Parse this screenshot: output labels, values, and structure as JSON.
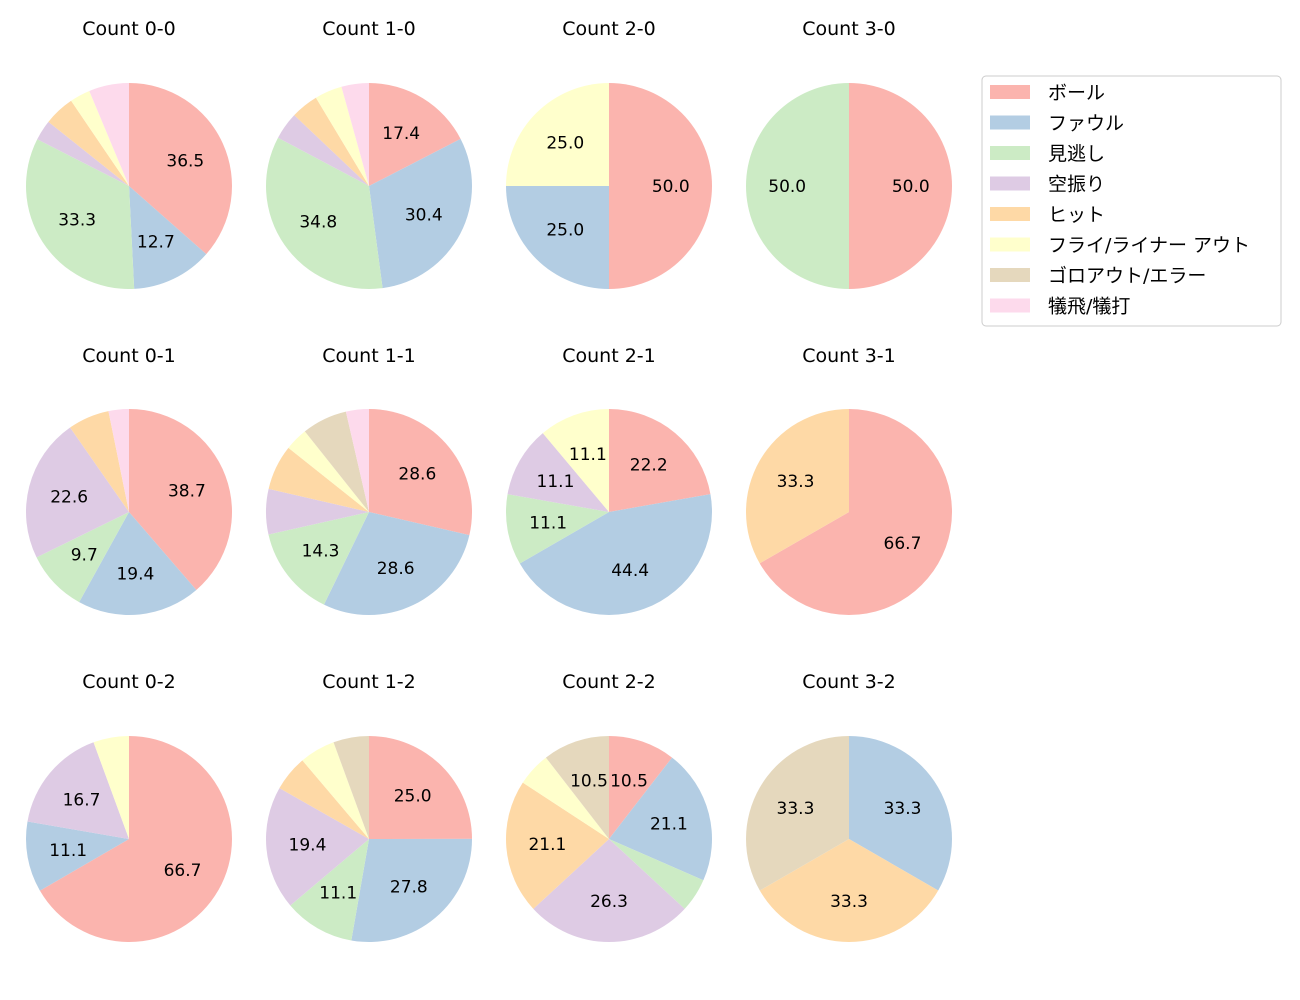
{
  "chart_data": {
    "type": "pie",
    "legend": {
      "placement": "top-right",
      "entries": [
        "ボール",
        "ファウル",
        "見逃し",
        "空振り",
        "ヒット",
        "フライ/ライナー アウト",
        "ゴロアウト/エラー",
        "犠飛/犠打"
      ]
    },
    "colors": [
      "#fbb4ae",
      "#b3cde3",
      "#ccebc5",
      "#decbe4",
      "#fed9a6",
      "#ffffcc",
      "#e5d8bd",
      "#fddaec"
    ],
    "start": "top",
    "direction": "clockwise",
    "charts": [
      {
        "title": "Count 0-0",
        "values": [
          36.5,
          12.7,
          33.3,
          3.2,
          4.8,
          3.2,
          0,
          6.3
        ]
      },
      {
        "title": "Count 1-0",
        "values": [
          17.4,
          30.4,
          34.8,
          4.3,
          4.3,
          4.3,
          0,
          4.3
        ]
      },
      {
        "title": "Count 2-0",
        "values": [
          50.0,
          25.0,
          0,
          0,
          0,
          25.0,
          0,
          0
        ]
      },
      {
        "title": "Count 3-0",
        "values": [
          50.0,
          0,
          50.0,
          0,
          0,
          0,
          0,
          0
        ]
      },
      {
        "title": "Count 0-1",
        "values": [
          38.7,
          19.4,
          9.7,
          22.6,
          6.5,
          0,
          0,
          3.2
        ]
      },
      {
        "title": "Count 1-1",
        "values": [
          28.6,
          28.6,
          14.3,
          7.1,
          7.1,
          3.6,
          7.1,
          3.6
        ]
      },
      {
        "title": "Count 2-1",
        "values": [
          22.2,
          44.4,
          11.1,
          11.1,
          0,
          11.1,
          0,
          0
        ]
      },
      {
        "title": "Count 3-1",
        "values": [
          66.7,
          0,
          0,
          0,
          33.3,
          0,
          0,
          0
        ]
      },
      {
        "title": "Count 0-2",
        "values": [
          66.7,
          11.1,
          0,
          16.7,
          0,
          5.6,
          0,
          0
        ]
      },
      {
        "title": "Count 1-2",
        "values": [
          25.0,
          27.8,
          11.1,
          19.4,
          5.6,
          5.6,
          5.6,
          0
        ]
      },
      {
        "title": "Count 2-2",
        "values": [
          10.5,
          21.1,
          5.3,
          26.3,
          21.1,
          5.3,
          10.5,
          0
        ]
      },
      {
        "title": "Count 3-2",
        "values": [
          0,
          33.3,
          0,
          0,
          33.3,
          0,
          33.3,
          0
        ]
      }
    ]
  }
}
